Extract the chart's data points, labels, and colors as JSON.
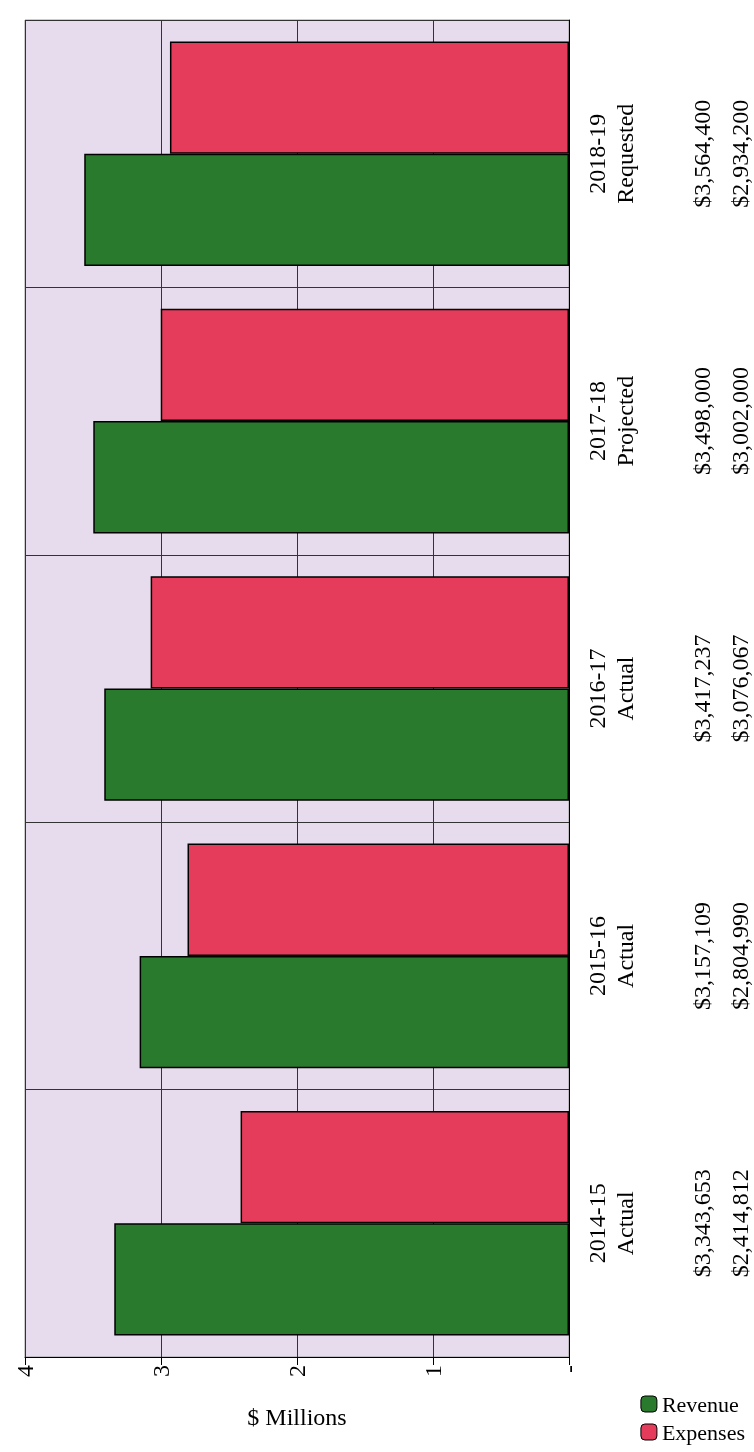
{
  "chart_data": {
    "type": "bar",
    "orientation": "horizontal",
    "xlabel": "$ Millions",
    "categories": [
      "2018-19\nRequested",
      "2017-18\nProjected",
      "2016-17\nActual",
      "2015-16\nActual",
      "2014-15\nActual"
    ],
    "series": [
      {
        "name": "Revenue",
        "color": "#2a7a2e",
        "values": [
          3.5644,
          3.498,
          3.417237,
          3.157109,
          3.343653
        ]
      },
      {
        "name": "Expenses",
        "color": "#e63c5c",
        "values": [
          2.9342,
          3.002,
          3.076067,
          2.80499,
          2.414812
        ]
      }
    ],
    "annotations": [
      "$3,564,400",
      "$3,498,000",
      "$3,417,237",
      "$3,157,109",
      "$3,343,653",
      "$2,934,200",
      "$3,002,000",
      "$3,076,067",
      "$2,804,990",
      "$2,414,812"
    ],
    "xlim": [
      4,
      0
    ],
    "xticks": [
      4,
      3,
      2,
      1,
      {
        "value": 0,
        "label": "-"
      }
    ],
    "grid": true,
    "legend": "bottom right"
  }
}
